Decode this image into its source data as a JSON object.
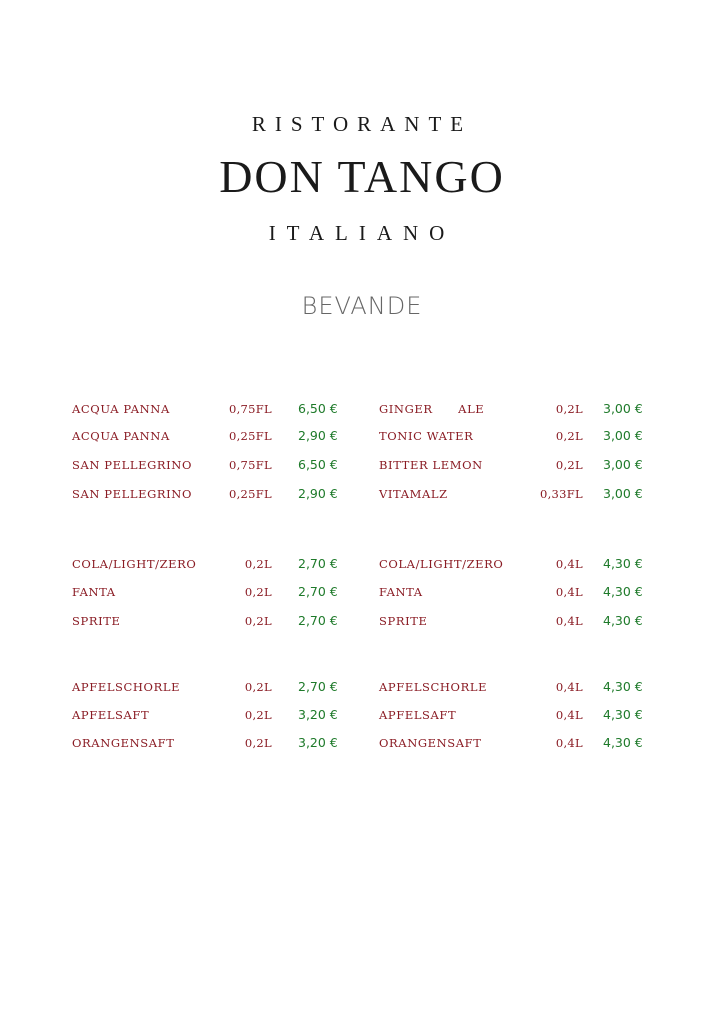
{
  "header": {
    "line1": "RISTORANTE",
    "name": "DON TANGO",
    "line3": "ITALIANO",
    "section": "BEVANDE"
  },
  "colors": {
    "item": "#8a1c24",
    "price": "#1e7a2a"
  },
  "left": [
    {
      "name": "ACQUA PANNA",
      "size": "0,75FL",
      "price": "6,50 €"
    },
    {
      "name": "ACQUA PANNA",
      "size": "0,25FL",
      "price": "2,90 €"
    },
    {
      "name": "SAN PELLEGRINO",
      "size": "0,75FL",
      "price": "6,50 €"
    },
    {
      "name": "SAN PELLEGRINO",
      "size": "0,25FL",
      "price": "2,90 €"
    },
    {
      "name": "COLA/LIGHT/ZERO",
      "size": "0,2L",
      "price": "2,70 €"
    },
    {
      "name": "FANTA",
      "size": "0,2L",
      "price": "2,70 €"
    },
    {
      "name": "SPRITE",
      "size": "0,2L",
      "price": "2,70 €"
    },
    {
      "name": "APFELSCHORLE",
      "size": "0,2L",
      "price": "2,70 €"
    },
    {
      "name": "APFELSAFT",
      "size": "0,2L",
      "price": "3,20 €"
    },
    {
      "name": "ORANGENSAFT",
      "size": "0,2L",
      "price": "3,20 €"
    }
  ],
  "right": [
    {
      "name": "GINGER      ALE",
      "size": "0,2L",
      "price": "3,00 €"
    },
    {
      "name": "TONIC WATER",
      "size": "0,2L",
      "price": "3,00 €"
    },
    {
      "name": "BITTER LEMON",
      "size": "0,2L",
      "price": "3,00 €"
    },
    {
      "name": "VITAMALZ",
      "size": "0,33FL",
      "price": "3,00 €"
    },
    {
      "name": "COLA/LIGHT/ZERO",
      "size": "0,4L",
      "price": "4,30 €"
    },
    {
      "name": "FANTA",
      "size": "0,4L",
      "price": "4,30 €"
    },
    {
      "name": "SPRITE",
      "size": "0,4L",
      "price": "4,30 €"
    },
    {
      "name": "APFELSCHORLE",
      "size": "0,4L",
      "price": "4,30 €"
    },
    {
      "name": "APFELSAFT",
      "size": "0,4L",
      "price": "4,30 €"
    },
    {
      "name": "ORANGENSAFT",
      "size": "0,4L",
      "price": "4,30 €"
    }
  ]
}
